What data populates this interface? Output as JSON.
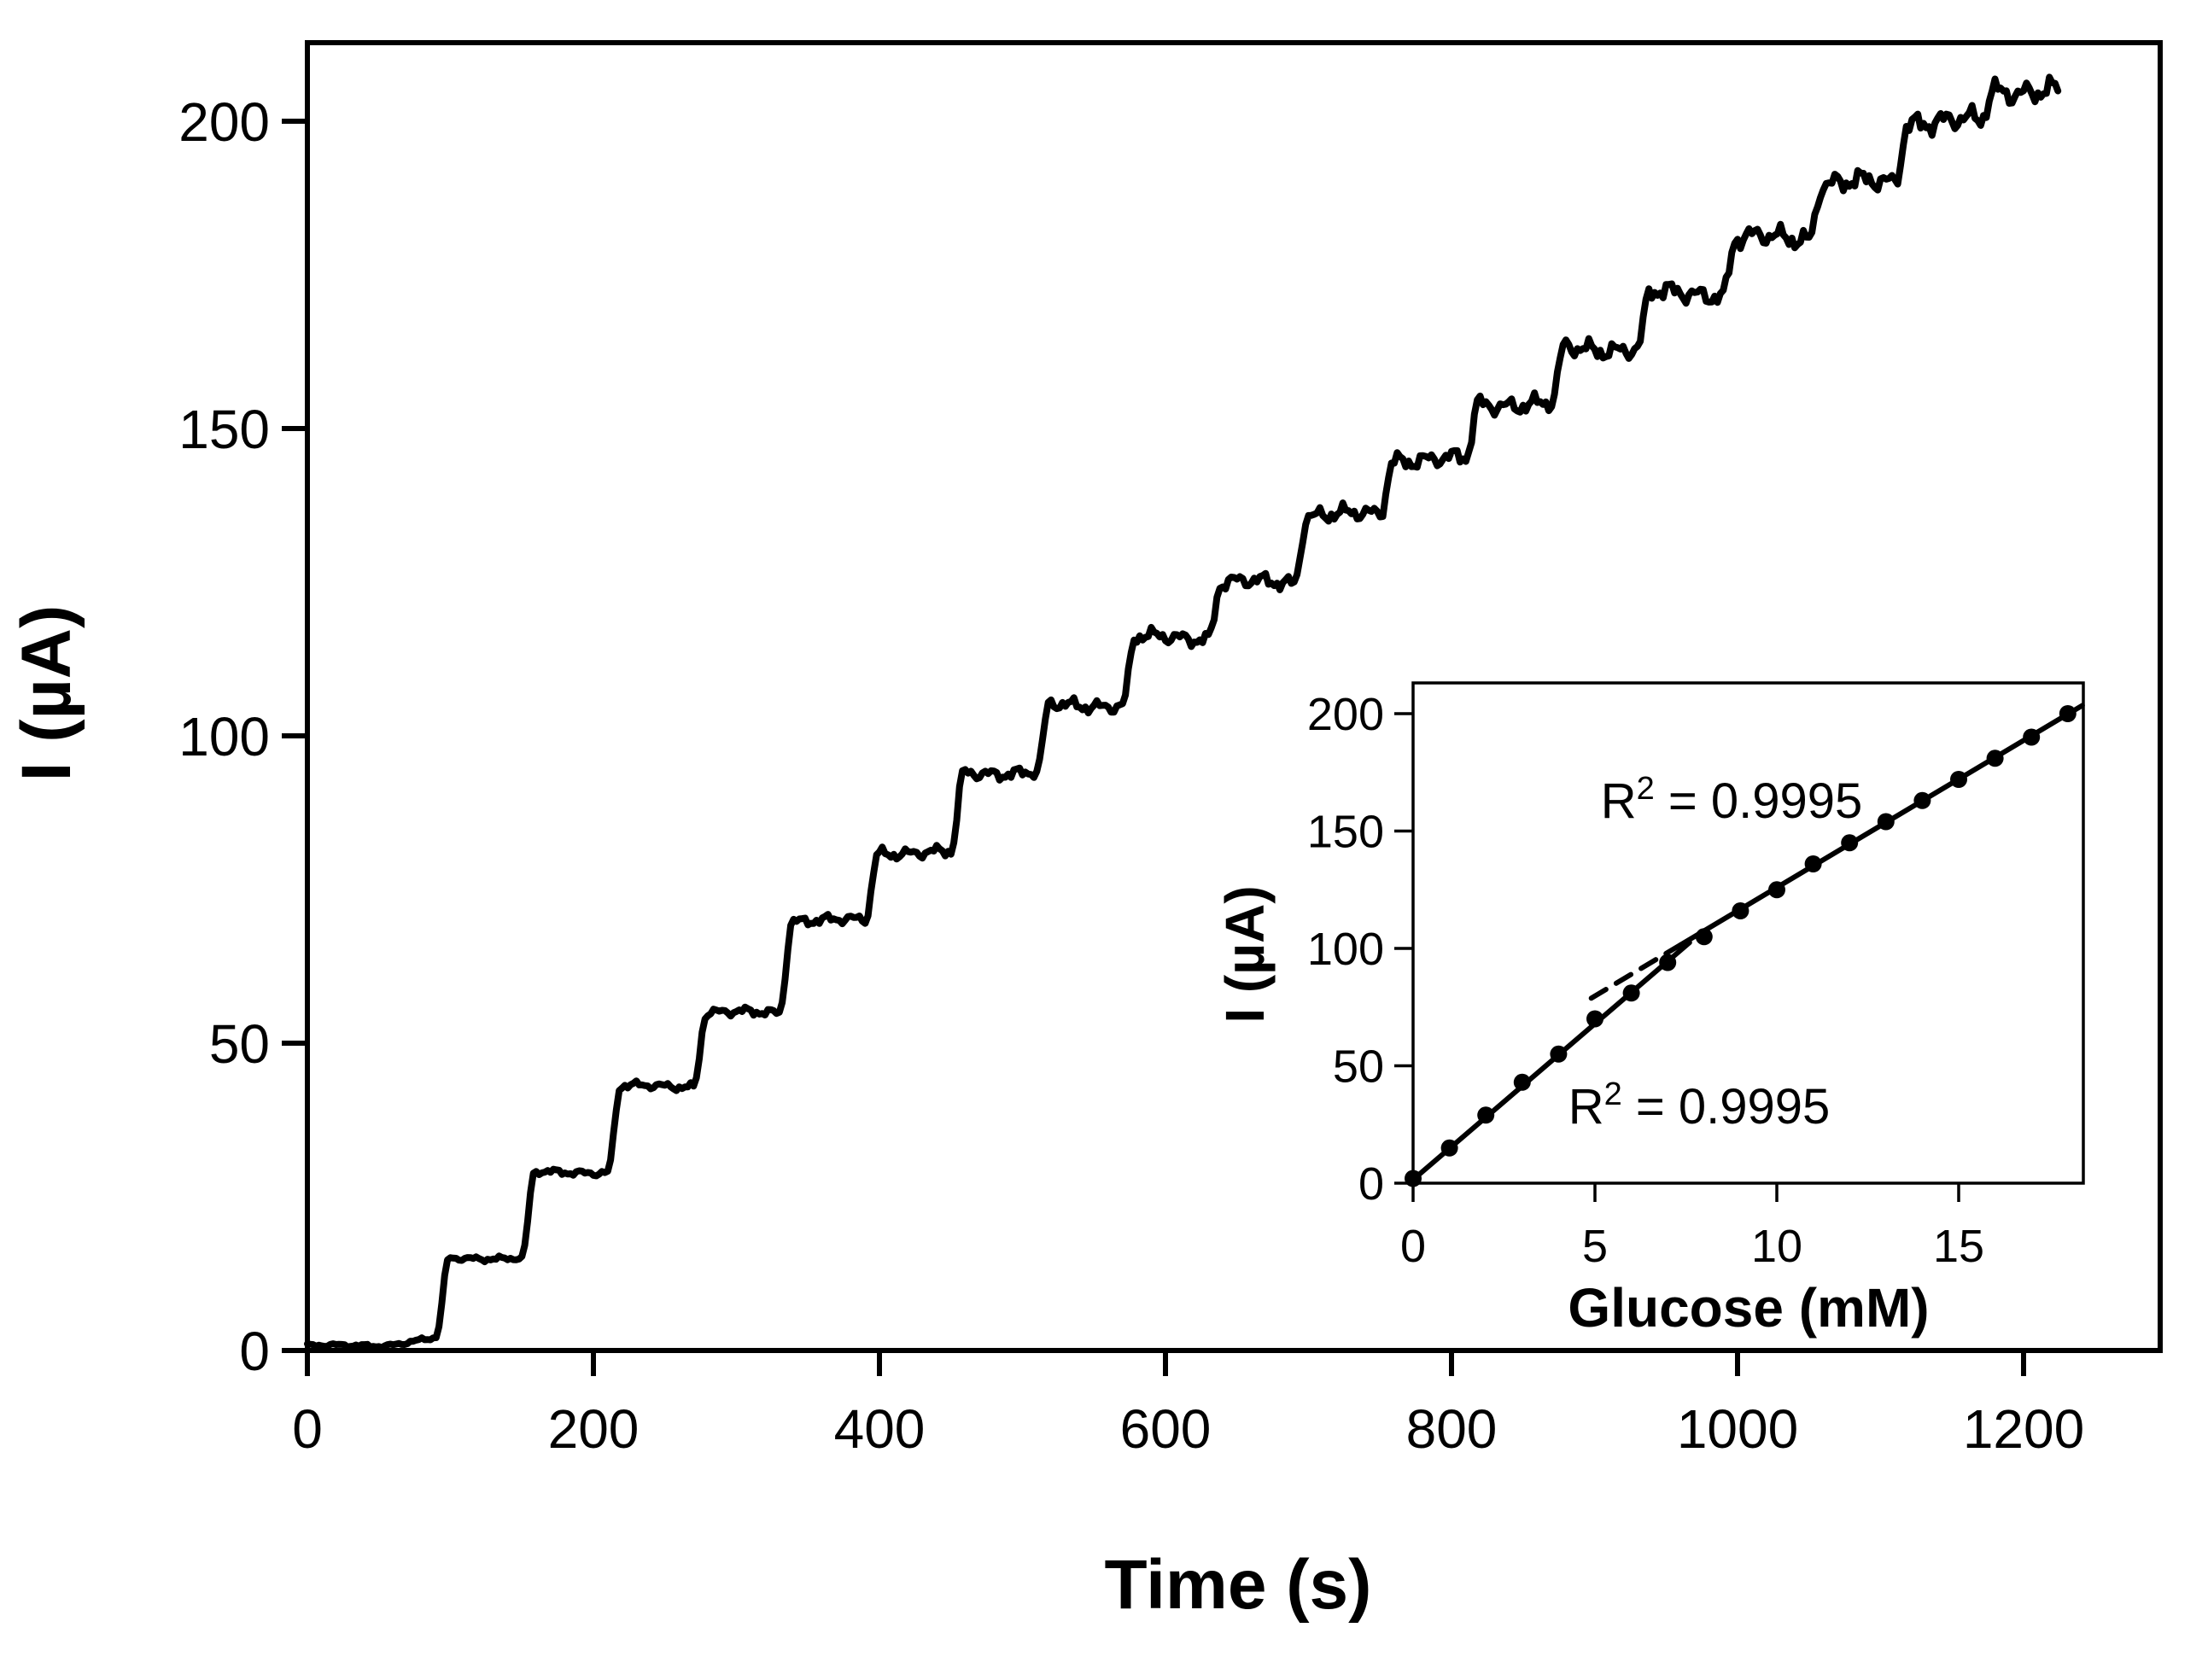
{
  "figure": {
    "background_color": "#ffffff",
    "ink_color": "#000000",
    "description": "Amperometric current-time response of a glucose biosensor to successive 1 mM glucose additions, with inset calibration curve"
  },
  "main": {
    "xlabel": "Time (s)",
    "ylabel": "I (µA)"
  },
  "inset": {
    "xlabel": "Glucose (mM)",
    "ylabel": "I (µA)",
    "r2_top": {
      "base": "R",
      "sup": "2",
      "rest": " = 0.9995"
    },
    "r2_bottom": {
      "base": "R",
      "sup": "2",
      "rest": " = 0.9995"
    }
  },
  "chart_data": [
    {
      "type": "line",
      "role": "main-amperometric-trace",
      "xlabel": "Time (s)",
      "ylabel": "I (µA)",
      "xlim": [
        0,
        1296
      ],
      "ylim": [
        0,
        212.8
      ],
      "xticks": [
        0,
        200,
        400,
        600,
        800,
        1000,
        1200
      ],
      "yticks": [
        0,
        50,
        100,
        150,
        200
      ],
      "grid": false,
      "legend_position": "none",
      "baseline_current_uA": 0.8,
      "injection_interval_s": 60,
      "rise_duration_s": 9,
      "step_rise_times_s": [
        90,
        150,
        210,
        270,
        330,
        390,
        450,
        510,
        570,
        630,
        690,
        750,
        810,
        870,
        930,
        990,
        1050,
        1110,
        1170
      ],
      "step_plateau_currents_uA": [
        15,
        29,
        43,
        55,
        70,
        81,
        94,
        105,
        116,
        125,
        136,
        145,
        154,
        163,
        172,
        181,
        190,
        200,
        205
      ],
      "t_end_s": 1225,
      "noise_amplitude_uA_at_baseline": 0.35,
      "noise_amplitude_uA_at_top": 2.3
    },
    {
      "type": "scatter",
      "role": "inset-calibration-curve",
      "xlabel": "Glucose (mM)",
      "ylabel": "I (µA)",
      "xlim": [
        0,
        18.4
      ],
      "ylim": [
        0,
        213
      ],
      "xticks": [
        0,
        5,
        10,
        15
      ],
      "yticks": [
        0,
        50,
        100,
        150,
        200
      ],
      "grid": false,
      "points": {
        "x": [
          0,
          1,
          2,
          3,
          4,
          5,
          6,
          7,
          8,
          9,
          10,
          11,
          12,
          13,
          14,
          15,
          16,
          17,
          18
        ],
        "y": [
          2,
          15,
          29,
          43,
          55,
          70,
          81,
          94,
          105,
          116,
          125,
          136,
          145,
          154,
          163,
          172,
          181,
          190,
          200
        ]
      },
      "fit_lines": [
        {
          "name": "low-range-fit",
          "r2": 0.9995,
          "x1": 0.0,
          "y1": 1.5,
          "x2": 7.6,
          "y2": 102.5,
          "style": "solid"
        },
        {
          "name": "high-range-fit",
          "r2": 0.9995,
          "x1": 7.35,
          "y1": 101.5,
          "x2": 18.4,
          "y2": 203.5,
          "style": "solid"
        },
        {
          "name": "high-range-fit-extension",
          "x1": 4.9,
          "y1": 78.8,
          "x2": 7.35,
          "y2": 101.5,
          "style": "dashed"
        }
      ],
      "annotations": [
        {
          "text": "R² = 0.9995",
          "position": "upper-center"
        },
        {
          "text": "R² = 0.9995",
          "position": "lower-center"
        }
      ]
    }
  ]
}
